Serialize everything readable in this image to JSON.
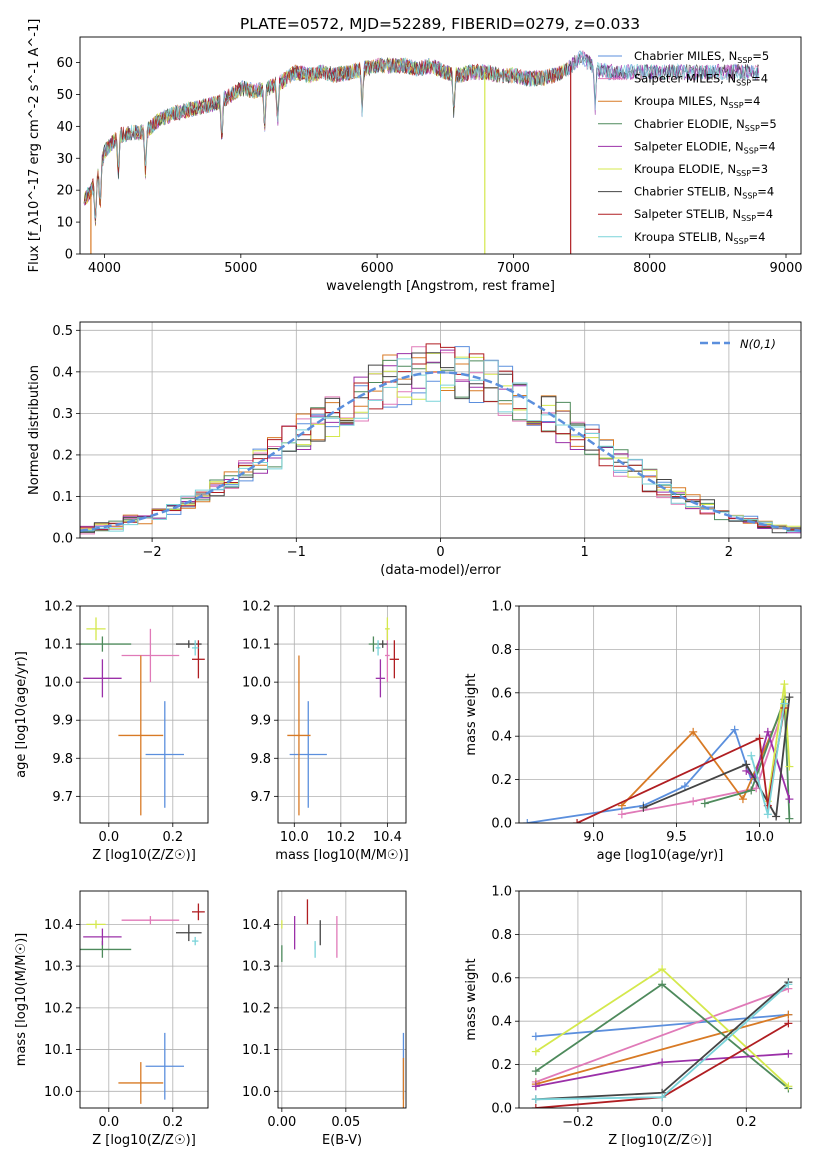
{
  "title": "PLATE=0572, MJD=52289, FIBERID=0279, z=0.033",
  "colors": {
    "Chabrier MILES": "#5b8fdd",
    "Salpeter MILES": "#e07ab8",
    "Kroupa MILES": "#d87a25",
    "Chabrier ELODIE": "#4e8a5c",
    "Salpeter ELODIE": "#9b30a8",
    "Kroupa ELODIE": "#d4e84c",
    "Chabrier STELIB": "#444444",
    "Salpeter STELIB": "#b01e22",
    "Kroupa STELIB": "#7ad3d9"
  },
  "chart_data": [
    {
      "id": "spectrum",
      "type": "line",
      "xlabel": "wavelength [Angstrom, rest frame]",
      "ylabel": "Flux [f_λ10^-17 erg cm^-2 s^-1 A^-1]",
      "xlim": [
        3820,
        9110
      ],
      "ylim": [
        0,
        68
      ],
      "xticks": [
        4000,
        5000,
        6000,
        7000,
        8000,
        9000
      ],
      "yticks": [
        0,
        10,
        20,
        30,
        40,
        50,
        60
      ],
      "legend": [
        {
          "name": "Chabrier MILES",
          "nssp": "5"
        },
        {
          "name": "Salpeter MILES",
          "nssp": "4"
        },
        {
          "name": "Kroupa MILES",
          "nssp": "4"
        },
        {
          "name": "Chabrier ELODIE",
          "nssp": "5"
        },
        {
          "name": "Salpeter ELODIE",
          "nssp": "4"
        },
        {
          "name": "Kroupa ELODIE",
          "nssp": "3"
        },
        {
          "name": "Chabrier STELIB",
          "nssp": "4"
        },
        {
          "name": "Salpeter STELIB",
          "nssp": "4"
        },
        {
          "name": "Kroupa STELIB",
          "nssp": "4"
        }
      ],
      "continuum": [
        [
          3850,
          17
        ],
        [
          3900,
          20
        ],
        [
          3950,
          24
        ],
        [
          4000,
          32
        ],
        [
          4100,
          37
        ],
        [
          4200,
          38
        ],
        [
          4300,
          38
        ],
        [
          4400,
          42
        ],
        [
          4500,
          44
        ],
        [
          4600,
          45
        ],
        [
          4700,
          46
        ],
        [
          4800,
          47
        ],
        [
          4900,
          49
        ],
        [
          5000,
          52
        ],
        [
          5100,
          51
        ],
        [
          5200,
          52
        ],
        [
          5300,
          54
        ],
        [
          5400,
          57
        ],
        [
          5500,
          56
        ],
        [
          5600,
          57
        ],
        [
          5700,
          56
        ],
        [
          5800,
          57
        ],
        [
          5900,
          58
        ],
        [
          6000,
          59
        ],
        [
          6100,
          59
        ],
        [
          6200,
          59
        ],
        [
          6300,
          58
        ],
        [
          6400,
          59
        ],
        [
          6500,
          57
        ],
        [
          6600,
          56
        ],
        [
          6700,
          57
        ],
        [
          6800,
          57
        ],
        [
          6900,
          56
        ],
        [
          7000,
          56
        ],
        [
          7100,
          55
        ],
        [
          7200,
          55
        ],
        [
          7300,
          56
        ],
        [
          7400,
          58
        ],
        [
          7500,
          62
        ],
        [
          7600,
          58
        ],
        [
          7700,
          57
        ],
        [
          7800,
          57
        ],
        [
          7900,
          57
        ],
        [
          8000,
          57
        ],
        [
          8200,
          57
        ],
        [
          8400,
          57
        ],
        [
          8600,
          57
        ],
        [
          8800,
          57
        ]
      ],
      "dropouts": [
        {
          "model": "Kroupa MILES",
          "x": 3900
        },
        {
          "model": "Kroupa ELODIE",
          "x": 6790
        },
        {
          "model": "Salpeter STELIB",
          "x": 7420
        }
      ]
    },
    {
      "id": "residual-histogram",
      "type": "histogram",
      "xlabel": "(data-model)/error",
      "ylabel": "Normed distribution",
      "xlim": [
        -2.5,
        2.5
      ],
      "ylim": [
        0,
        0.52
      ],
      "xticks": [
        -2,
        -1,
        0,
        1,
        2
      ],
      "yticks": [
        0.0,
        0.1,
        0.2,
        0.3,
        0.4,
        0.5
      ],
      "bin_width": 0.1,
      "gaussian_label": "N(0,1)",
      "gaussian_color": "#5b8fdd"
    },
    {
      "id": "age-vs-Z",
      "type": "scatter",
      "xlabel": "Z [log10(Z/Z☉)]",
      "ylabel": "age  [log10(age/yr)]",
      "xlim": [
        -0.09,
        0.31
      ],
      "ylim": [
        9.63,
        10.2
      ],
      "xticks": [
        0.0,
        0.2
      ],
      "yticks": [
        9.7,
        9.8,
        9.9,
        10.0,
        10.1,
        10.2
      ],
      "points": [
        {
          "model": "Chabrier MILES",
          "x": 0.175,
          "y": 9.81,
          "xerr": 0.06,
          "yerr": 0.14
        },
        {
          "model": "Salpeter MILES",
          "x": 0.13,
          "y": 10.07,
          "xerr": 0.09,
          "yerr": 0.07
        },
        {
          "model": "Kroupa MILES",
          "x": 0.1,
          "y": 9.86,
          "xerr": 0.07,
          "yerr": 0.21
        },
        {
          "model": "Chabrier ELODIE",
          "x": -0.02,
          "y": 10.1,
          "xerr": 0.09,
          "yerr": 0.02
        },
        {
          "model": "Salpeter ELODIE",
          "x": -0.02,
          "y": 10.01,
          "xerr": 0.06,
          "yerr": 0.05
        },
        {
          "model": "Kroupa ELODIE",
          "x": -0.04,
          "y": 10.14,
          "xerr": 0.03,
          "yerr": 0.03
        },
        {
          "model": "Chabrier STELIB",
          "x": 0.25,
          "y": 10.1,
          "xerr": 0.04,
          "yerr": 0.01
        },
        {
          "model": "Salpeter STELIB",
          "x": 0.28,
          "y": 10.06,
          "xerr": 0.02,
          "yerr": 0.05
        },
        {
          "model": "Kroupa STELIB",
          "x": 0.27,
          "y": 10.09,
          "xerr": 0.01,
          "yerr": 0.02
        }
      ]
    },
    {
      "id": "age-vs-mass",
      "type": "scatter",
      "xlabel": "mass [log10(M/M☉)]",
      "ylabel": "",
      "xlim": [
        9.93,
        10.48
      ],
      "ylim": [
        9.63,
        10.2
      ],
      "xticks": [
        10.0,
        10.2,
        10.4
      ],
      "yticks": [
        9.7,
        9.8,
        9.9,
        10.0,
        10.1,
        10.2
      ],
      "points": [
        {
          "model": "Chabrier MILES",
          "x": 10.06,
          "y": 9.81,
          "xerr": 0.08,
          "yerr": 0.14
        },
        {
          "model": "Salpeter MILES",
          "x": 10.4,
          "y": 10.07,
          "xerr": 0.01,
          "yerr": 0.07
        },
        {
          "model": "Kroupa MILES",
          "x": 10.02,
          "y": 9.86,
          "xerr": 0.05,
          "yerr": 0.21
        },
        {
          "model": "Chabrier ELODIE",
          "x": 10.34,
          "y": 10.1,
          "xerr": 0.02,
          "yerr": 0.02
        },
        {
          "model": "Salpeter ELODIE",
          "x": 10.37,
          "y": 10.01,
          "xerr": 0.02,
          "yerr": 0.05
        },
        {
          "model": "Kroupa ELODIE",
          "x": 10.4,
          "y": 10.14,
          "xerr": 0.01,
          "yerr": 0.03
        },
        {
          "model": "Chabrier STELIB",
          "x": 10.38,
          "y": 10.1,
          "xerr": 0.02,
          "yerr": 0.01
        },
        {
          "model": "Salpeter STELIB",
          "x": 10.43,
          "y": 10.06,
          "xerr": 0.02,
          "yerr": 0.05
        },
        {
          "model": "Kroupa STELIB",
          "x": 10.36,
          "y": 10.09,
          "xerr": 0.01,
          "yerr": 0.02
        }
      ]
    },
    {
      "id": "massweight-vs-age",
      "type": "line",
      "xlabel": "age  [log10(age/yr)]",
      "ylabel": "mass weight",
      "xlim": [
        8.55,
        10.25
      ],
      "ylim": [
        0,
        1.0
      ],
      "xticks": [
        9.0,
        9.5,
        10.0
      ],
      "yticks": [
        0.0,
        0.2,
        0.4,
        0.6,
        0.8,
        1.0
      ],
      "series": [
        {
          "model": "Chabrier MILES",
          "points": [
            [
              8.6,
              0.0
            ],
            [
              9.3,
              0.08
            ],
            [
              9.55,
              0.17
            ],
            [
              9.85,
              0.43
            ],
            [
              9.95,
              0.2
            ],
            [
              10.15,
              0.55
            ]
          ]
        },
        {
          "model": "Salpeter MILES",
          "points": [
            [
              9.17,
              0.04
            ],
            [
              9.6,
              0.1
            ],
            [
              9.98,
              0.16
            ],
            [
              10.15,
              0.54
            ]
          ]
        },
        {
          "model": "Kroupa MILES",
          "points": [
            [
              9.17,
              0.08
            ],
            [
              9.6,
              0.42
            ],
            [
              9.9,
              0.11
            ],
            [
              10.15,
              0.55
            ]
          ]
        },
        {
          "model": "Chabrier ELODIE",
          "points": [
            [
              9.67,
              0.09
            ],
            [
              9.95,
              0.15
            ],
            [
              10.15,
              0.57
            ],
            [
              10.18,
              0.02
            ]
          ]
        },
        {
          "model": "Salpeter ELODIE",
          "points": [
            [
              9.92,
              0.24
            ],
            [
              9.97,
              0.21
            ],
            [
              10.05,
              0.42
            ],
            [
              10.18,
              0.11
            ]
          ]
        },
        {
          "model": "Kroupa ELODIE",
          "points": [
            [
              10.05,
              0.1
            ],
            [
              10.15,
              0.64
            ],
            [
              10.18,
              0.26
            ]
          ]
        },
        {
          "model": "Chabrier STELIB",
          "points": [
            [
              9.3,
              0.07
            ],
            [
              9.92,
              0.27
            ],
            [
              10.1,
              0.03
            ],
            [
              10.18,
              0.58
            ]
          ]
        },
        {
          "model": "Salpeter STELIB",
          "points": [
            [
              8.9,
              0.0
            ],
            [
              10.0,
              0.39
            ],
            [
              10.05,
              0.08
            ],
            [
              10.15,
              0.53
            ]
          ]
        },
        {
          "model": "Kroupa STELIB",
          "points": [
            [
              9.95,
              0.31
            ],
            [
              10.05,
              0.04
            ],
            [
              10.15,
              0.55
            ]
          ]
        }
      ]
    },
    {
      "id": "mass-vs-Z",
      "type": "scatter",
      "xlabel": "Z [log10(Z/Z☉)]",
      "ylabel": "mass [log10(M/M☉)]",
      "xlim": [
        -0.09,
        0.31
      ],
      "ylim": [
        9.96,
        10.48
      ],
      "xticks": [
        0.0,
        0.2
      ],
      "yticks": [
        10.0,
        10.1,
        10.2,
        10.3,
        10.4
      ],
      "points": [
        {
          "model": "Chabrier MILES",
          "x": 0.175,
          "y": 10.06,
          "xerr": 0.06,
          "yerr": 0.08
        },
        {
          "model": "Salpeter MILES",
          "x": 0.13,
          "y": 10.41,
          "xerr": 0.09,
          "yerr": 0.01
        },
        {
          "model": "Kroupa MILES",
          "x": 0.1,
          "y": 10.02,
          "xerr": 0.07,
          "yerr": 0.05
        },
        {
          "model": "Chabrier ELODIE",
          "x": -0.02,
          "y": 10.34,
          "xerr": 0.09,
          "yerr": 0.02
        },
        {
          "model": "Salpeter ELODIE",
          "x": -0.02,
          "y": 10.37,
          "xerr": 0.06,
          "yerr": 0.02
        },
        {
          "model": "Kroupa ELODIE",
          "x": -0.04,
          "y": 10.4,
          "xerr": 0.03,
          "yerr": 0.01
        },
        {
          "model": "Chabrier STELIB",
          "x": 0.25,
          "y": 10.38,
          "xerr": 0.04,
          "yerr": 0.02
        },
        {
          "model": "Salpeter STELIB",
          "x": 0.28,
          "y": 10.43,
          "xerr": 0.02,
          "yerr": 0.02
        },
        {
          "model": "Kroupa STELIB",
          "x": 0.27,
          "y": 10.36,
          "xerr": 0.01,
          "yerr": 0.01
        }
      ]
    },
    {
      "id": "mass-vs-ebv",
      "type": "scatter",
      "xlabel": "E(B-V)",
      "ylabel": "",
      "xlim": [
        -0.003,
        0.097
      ],
      "ylim": [
        9.96,
        10.48
      ],
      "xticks": [
        0.0,
        0.05
      ],
      "yticks": [
        10.0,
        10.1,
        10.2,
        10.3,
        10.4
      ],
      "points": [
        {
          "model": "Chabrier MILES",
          "x": 0.095,
          "y": 10.06,
          "xerr": 0.0,
          "yerr": 0.08
        },
        {
          "model": "Salpeter MILES",
          "x": 0.043,
          "y": 10.37,
          "xerr": 0.0,
          "yerr": 0.05
        },
        {
          "model": "Kroupa MILES",
          "x": 0.095,
          "y": 10.02,
          "xerr": 0.0,
          "yerr": 0.06
        },
        {
          "model": "Chabrier ELODIE",
          "x": 0.0,
          "y": 10.33,
          "xerr": 0.0,
          "yerr": 0.02
        },
        {
          "model": "Salpeter ELODIE",
          "x": 0.01,
          "y": 10.38,
          "xerr": 0.0,
          "yerr": 0.04
        },
        {
          "model": "Kroupa ELODIE",
          "x": 0.0,
          "y": 10.4,
          "xerr": 0.0,
          "yerr": 0.01
        },
        {
          "model": "Chabrier STELIB",
          "x": 0.03,
          "y": 10.38,
          "xerr": 0.0,
          "yerr": 0.03
        },
        {
          "model": "Salpeter STELIB",
          "x": 0.02,
          "y": 10.43,
          "xerr": 0.0,
          "yerr": 0.03
        },
        {
          "model": "Kroupa STELIB",
          "x": 0.026,
          "y": 10.34,
          "xerr": 0.0,
          "yerr": 0.02
        }
      ]
    },
    {
      "id": "massweight-vs-Z",
      "type": "line",
      "xlabel": "Z [log10(Z/Z☉)]",
      "ylabel": "mass weight",
      "xlim": [
        -0.34,
        0.33
      ],
      "ylim": [
        0,
        1.0
      ],
      "xticks": [
        -0.2,
        0.0,
        0.2
      ],
      "yticks": [
        0.0,
        0.2,
        0.4,
        0.6,
        0.8,
        1.0
      ],
      "series": [
        {
          "model": "Chabrier MILES",
          "points": [
            [
              -0.3,
              0.33
            ],
            [
              0.3,
              0.43
            ]
          ]
        },
        {
          "model": "Salpeter MILES",
          "points": [
            [
              -0.3,
              0.12
            ],
            [
              0.3,
              0.55
            ]
          ]
        },
        {
          "model": "Kroupa MILES",
          "points": [
            [
              -0.3,
              0.11
            ],
            [
              0.3,
              0.43
            ]
          ]
        },
        {
          "model": "Chabrier ELODIE",
          "points": [
            [
              -0.3,
              0.17
            ],
            [
              0.0,
              0.57
            ],
            [
              0.3,
              0.09
            ]
          ]
        },
        {
          "model": "Salpeter ELODIE",
          "points": [
            [
              -0.3,
              0.1
            ],
            [
              0.0,
              0.21
            ],
            [
              0.3,
              0.25
            ]
          ]
        },
        {
          "model": "Kroupa ELODIE",
          "points": [
            [
              -0.3,
              0.26
            ],
            [
              0.0,
              0.64
            ],
            [
              0.3,
              0.1
            ]
          ]
        },
        {
          "model": "Chabrier STELIB",
          "points": [
            [
              -0.3,
              0.04
            ],
            [
              0.0,
              0.07
            ],
            [
              0.3,
              0.58
            ]
          ]
        },
        {
          "model": "Salpeter STELIB",
          "points": [
            [
              -0.3,
              0.0
            ],
            [
              0.0,
              0.05
            ],
            [
              0.3,
              0.39
            ]
          ]
        },
        {
          "model": "Kroupa STELIB",
          "points": [
            [
              -0.3,
              0.04
            ],
            [
              0.0,
              0.05
            ],
            [
              0.3,
              0.57
            ]
          ]
        }
      ]
    }
  ]
}
